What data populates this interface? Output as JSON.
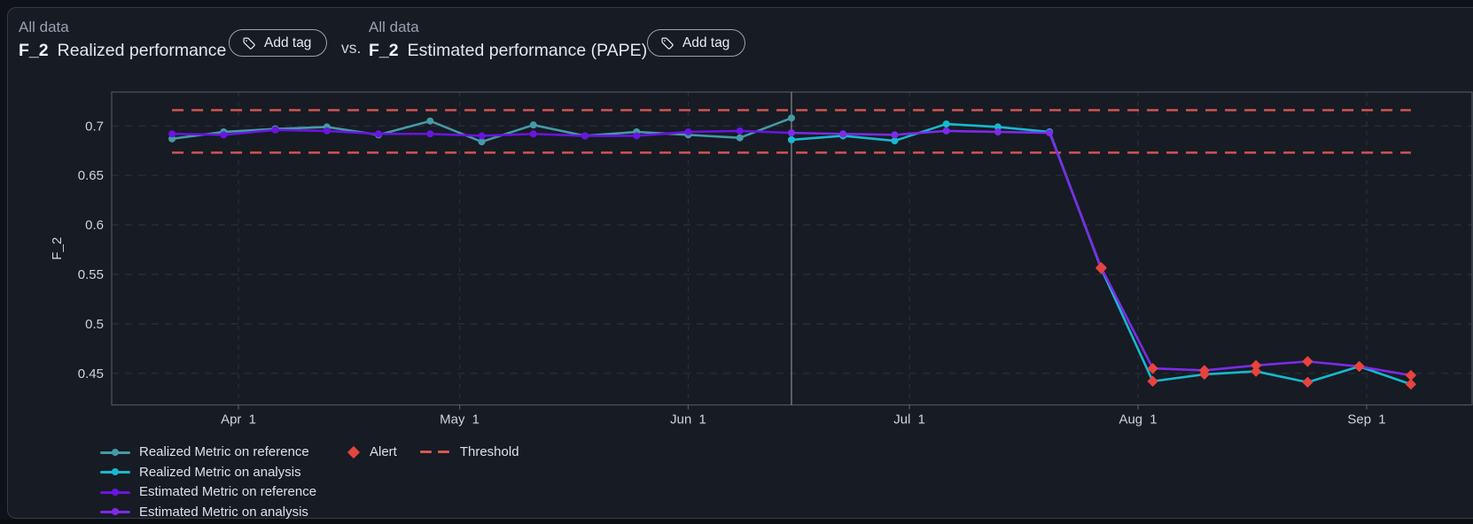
{
  "header": {
    "left": {
      "scope": "All data",
      "metric": "F_2",
      "title": "Realized performance",
      "add_tag_label": "Add tag"
    },
    "separator": "vs.",
    "right": {
      "scope": "All data",
      "metric": "F_2",
      "title": "Estimated performance (PAPE)",
      "add_tag_label": "Add tag"
    }
  },
  "chart_data": {
    "type": "line",
    "ylabel": "F_2",
    "ylim": [
      0.418,
      0.734
    ],
    "grid": true,
    "yticks": [
      {
        "v": 0.45,
        "label": "0.45"
      },
      {
        "v": 0.5,
        "label": "0.5"
      },
      {
        "v": 0.55,
        "label": "0.55"
      },
      {
        "v": 0.6,
        "label": "0.6"
      },
      {
        "v": 0.65,
        "label": "0.65"
      },
      {
        "v": 0.7,
        "label": "0.7"
      }
    ],
    "xticks": [
      {
        "label": "Apr 1",
        "d": 0
      },
      {
        "label": "May 1",
        "d": 30
      },
      {
        "label": "Jun 1",
        "d": 61
      },
      {
        "label": "Jul 1",
        "d": 91
      },
      {
        "label": "Aug 1",
        "d": 122
      },
      {
        "label": "Sep 1",
        "d": 153
      }
    ],
    "point_format": [
      "days_from_apr_1",
      "value",
      "alert_flag"
    ],
    "reference_analysis_split_d": 75,
    "split_line_color": "#8F96A1",
    "thresholds": {
      "upper": 0.716,
      "lower": 0.673,
      "extent_d": [
        -9,
        159
      ],
      "color": "#D95754",
      "legend_label": "Threshold"
    },
    "alert": {
      "color": "#E5443F",
      "legend_label": "Alert"
    },
    "series": [
      {
        "name": "Realized Metric on reference",
        "color": "#459AA6",
        "points": [
          [
            -9,
            0.687,
            0
          ],
          [
            -2,
            0.694,
            0
          ],
          [
            5,
            0.697,
            0
          ],
          [
            12,
            0.699,
            0
          ],
          [
            19,
            0.691,
            0
          ],
          [
            26,
            0.705,
            0
          ],
          [
            33,
            0.684,
            0
          ],
          [
            40,
            0.701,
            0
          ],
          [
            47,
            0.69,
            0
          ],
          [
            54,
            0.694,
            0
          ],
          [
            61,
            0.691,
            0
          ],
          [
            68,
            0.688,
            0
          ],
          [
            75,
            0.708,
            0
          ]
        ]
      },
      {
        "name": "Realized Metric on analysis",
        "color": "#17B9CF",
        "points": [
          [
            75,
            0.686,
            0
          ],
          [
            82,
            0.69,
            0
          ],
          [
            89,
            0.685,
            0
          ],
          [
            96,
            0.702,
            0
          ],
          [
            103,
            0.699,
            0
          ],
          [
            110,
            0.694,
            0
          ],
          [
            117,
            0.556,
            1
          ],
          [
            124,
            0.442,
            1
          ],
          [
            131,
            0.449,
            1
          ],
          [
            138,
            0.452,
            1
          ],
          [
            145,
            0.441,
            1
          ],
          [
            152,
            0.457,
            1
          ],
          [
            159,
            0.439,
            1
          ]
        ]
      },
      {
        "name": "Estimated Metric on reference",
        "color": "#6A15E0",
        "points": [
          [
            -9,
            0.692,
            0
          ],
          [
            -2,
            0.691,
            0
          ],
          [
            5,
            0.696,
            0
          ],
          [
            12,
            0.695,
            0
          ],
          [
            19,
            0.692,
            0
          ],
          [
            26,
            0.692,
            0
          ],
          [
            33,
            0.69,
            0
          ],
          [
            40,
            0.692,
            0
          ],
          [
            47,
            0.69,
            0
          ],
          [
            54,
            0.69,
            0
          ],
          [
            61,
            0.694,
            0
          ],
          [
            68,
            0.695,
            0
          ],
          [
            75,
            0.693,
            0
          ]
        ]
      },
      {
        "name": "Estimated Metric on analysis",
        "color": "#7C2BE8",
        "points": [
          [
            75,
            0.693,
            0
          ],
          [
            82,
            0.692,
            0
          ],
          [
            89,
            0.691,
            0
          ],
          [
            96,
            0.695,
            0
          ],
          [
            103,
            0.694,
            0
          ],
          [
            110,
            0.693,
            0
          ],
          [
            117,
            0.557,
            1
          ],
          [
            124,
            0.455,
            1
          ],
          [
            131,
            0.453,
            1
          ],
          [
            138,
            0.458,
            1
          ],
          [
            145,
            0.462,
            1
          ],
          [
            152,
            0.457,
            1
          ],
          [
            159,
            0.448,
            1
          ]
        ]
      }
    ],
    "legend_position": "bottom-left",
    "legend_order": [
      "Realized Metric on reference",
      "Realized Metric on analysis",
      "Estimated Metric on reference",
      "Estimated Metric on analysis",
      "Alert",
      "Threshold"
    ]
  }
}
